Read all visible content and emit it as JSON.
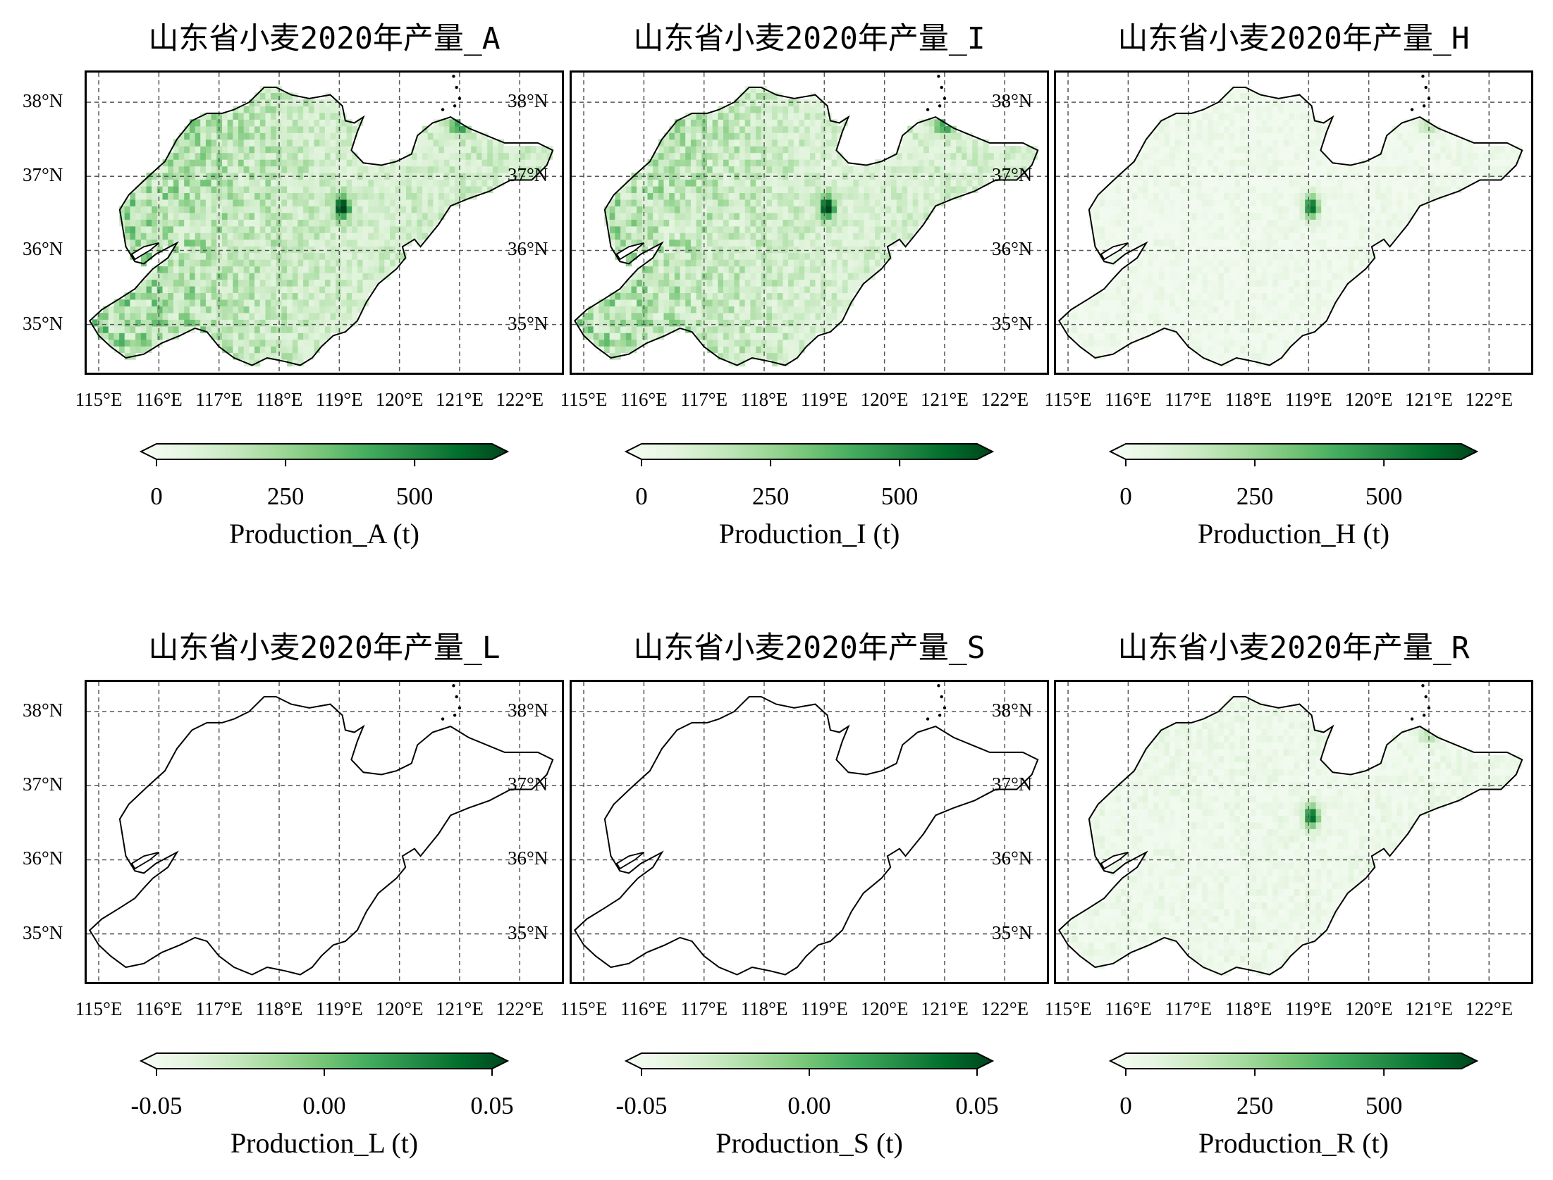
{
  "figure": {
    "panels": [
      {
        "id": "A",
        "title": "山东省小麦2020年产量_A",
        "colorbar": {
          "label": "Production_A (t)",
          "ticks": [
            "0",
            "250",
            "500"
          ],
          "range": [
            0,
            650
          ],
          "tick_values": [
            0,
            250,
            500
          ]
        },
        "intensity": 0.55,
        "field": "full"
      },
      {
        "id": "I",
        "title": "山东省小麦2020年产量_I",
        "colorbar": {
          "label": "Production_I (t)",
          "ticks": [
            "0",
            "250",
            "500"
          ],
          "range": [
            0,
            650
          ],
          "tick_values": [
            0,
            250,
            500
          ]
        },
        "intensity": 0.5,
        "field": "full"
      },
      {
        "id": "H",
        "title": "山东省小麦2020年产量_H",
        "colorbar": {
          "label": "Production_H (t)",
          "ticks": [
            "0",
            "250",
            "500"
          ],
          "range": [
            0,
            650
          ],
          "tick_values": [
            0,
            250,
            500
          ]
        },
        "intensity": 0.18,
        "field": "light"
      },
      {
        "id": "L",
        "title": "山东省小麦2020年产量_L",
        "colorbar": {
          "label": "Production_L (t)",
          "ticks": [
            "-0.05",
            "0.00",
            "0.05"
          ],
          "range": [
            -0.05,
            0.05
          ],
          "tick_values": [
            -0.05,
            0,
            0.05
          ]
        },
        "intensity": 0,
        "field": "empty"
      },
      {
        "id": "S",
        "title": "山东省小麦2020年产量_S",
        "colorbar": {
          "label": "Production_S (t)",
          "ticks": [
            "-0.05",
            "0.00",
            "0.05"
          ],
          "range": [
            -0.05,
            0.05
          ],
          "tick_values": [
            -0.05,
            0,
            0.05
          ]
        },
        "intensity": 0,
        "field": "empty"
      },
      {
        "id": "R",
        "title": "山东省小麦2020年产量_R",
        "colorbar": {
          "label": "Production_R (t)",
          "ticks": [
            "0",
            "250",
            "500"
          ],
          "range": [
            0,
            650
          ],
          "tick_values": [
            0,
            250,
            500
          ]
        },
        "intensity": 0.2,
        "field": "light"
      }
    ],
    "lat_labels": [
      "38°N",
      "37°N",
      "36°N",
      "35°N"
    ],
    "lon_labels": [
      "115°E",
      "116°E",
      "117°E",
      "118°E",
      "119°E",
      "120°E",
      "121°E",
      "122°E"
    ],
    "lat_values": [
      38,
      37,
      36,
      35
    ],
    "lon_values": [
      115,
      116,
      117,
      118,
      119,
      120,
      121,
      122
    ],
    "extent": {
      "lon": [
        114.8,
        122.7
      ],
      "lat": [
        34.35,
        38.4
      ]
    },
    "colormap": "Greens",
    "colors": {
      "grid": "#555555",
      "outline": "#000000",
      "cmap_low": "#f7fcf5",
      "cmap_mid": "#74c476",
      "cmap_high": "#00441b"
    }
  }
}
